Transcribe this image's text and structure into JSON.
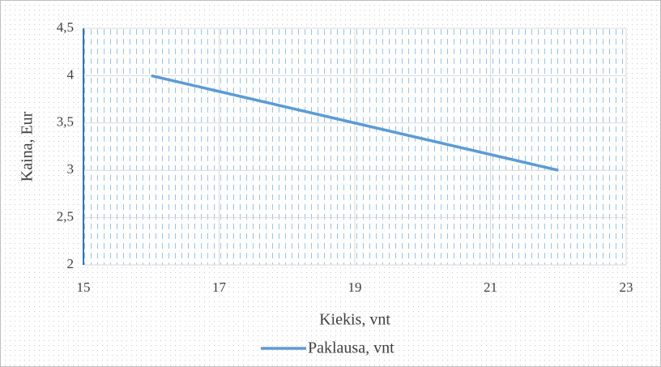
{
  "chart_data": {
    "type": "line",
    "x_label": "Kiekis, vnt",
    "y_label": "Kaina, Eur",
    "series": [
      {
        "name": "Paklausa, vnt",
        "color": "#5b9bd5",
        "x": [
          16,
          22
        ],
        "values": [
          4,
          3
        ]
      }
    ],
    "xlim": [
      15,
      23
    ],
    "xticks": [
      15,
      17,
      19,
      21,
      23
    ],
    "ylim": [
      2,
      4.5
    ],
    "yticks": [
      2,
      {
        "value": 2.5,
        "label": "2,5"
      },
      3,
      {
        "value": 3.5,
        "label": "3,5"
      },
      4,
      {
        "value": 4.5,
        "label": "4,5"
      }
    ],
    "grid": true,
    "legend": "bottom"
  }
}
